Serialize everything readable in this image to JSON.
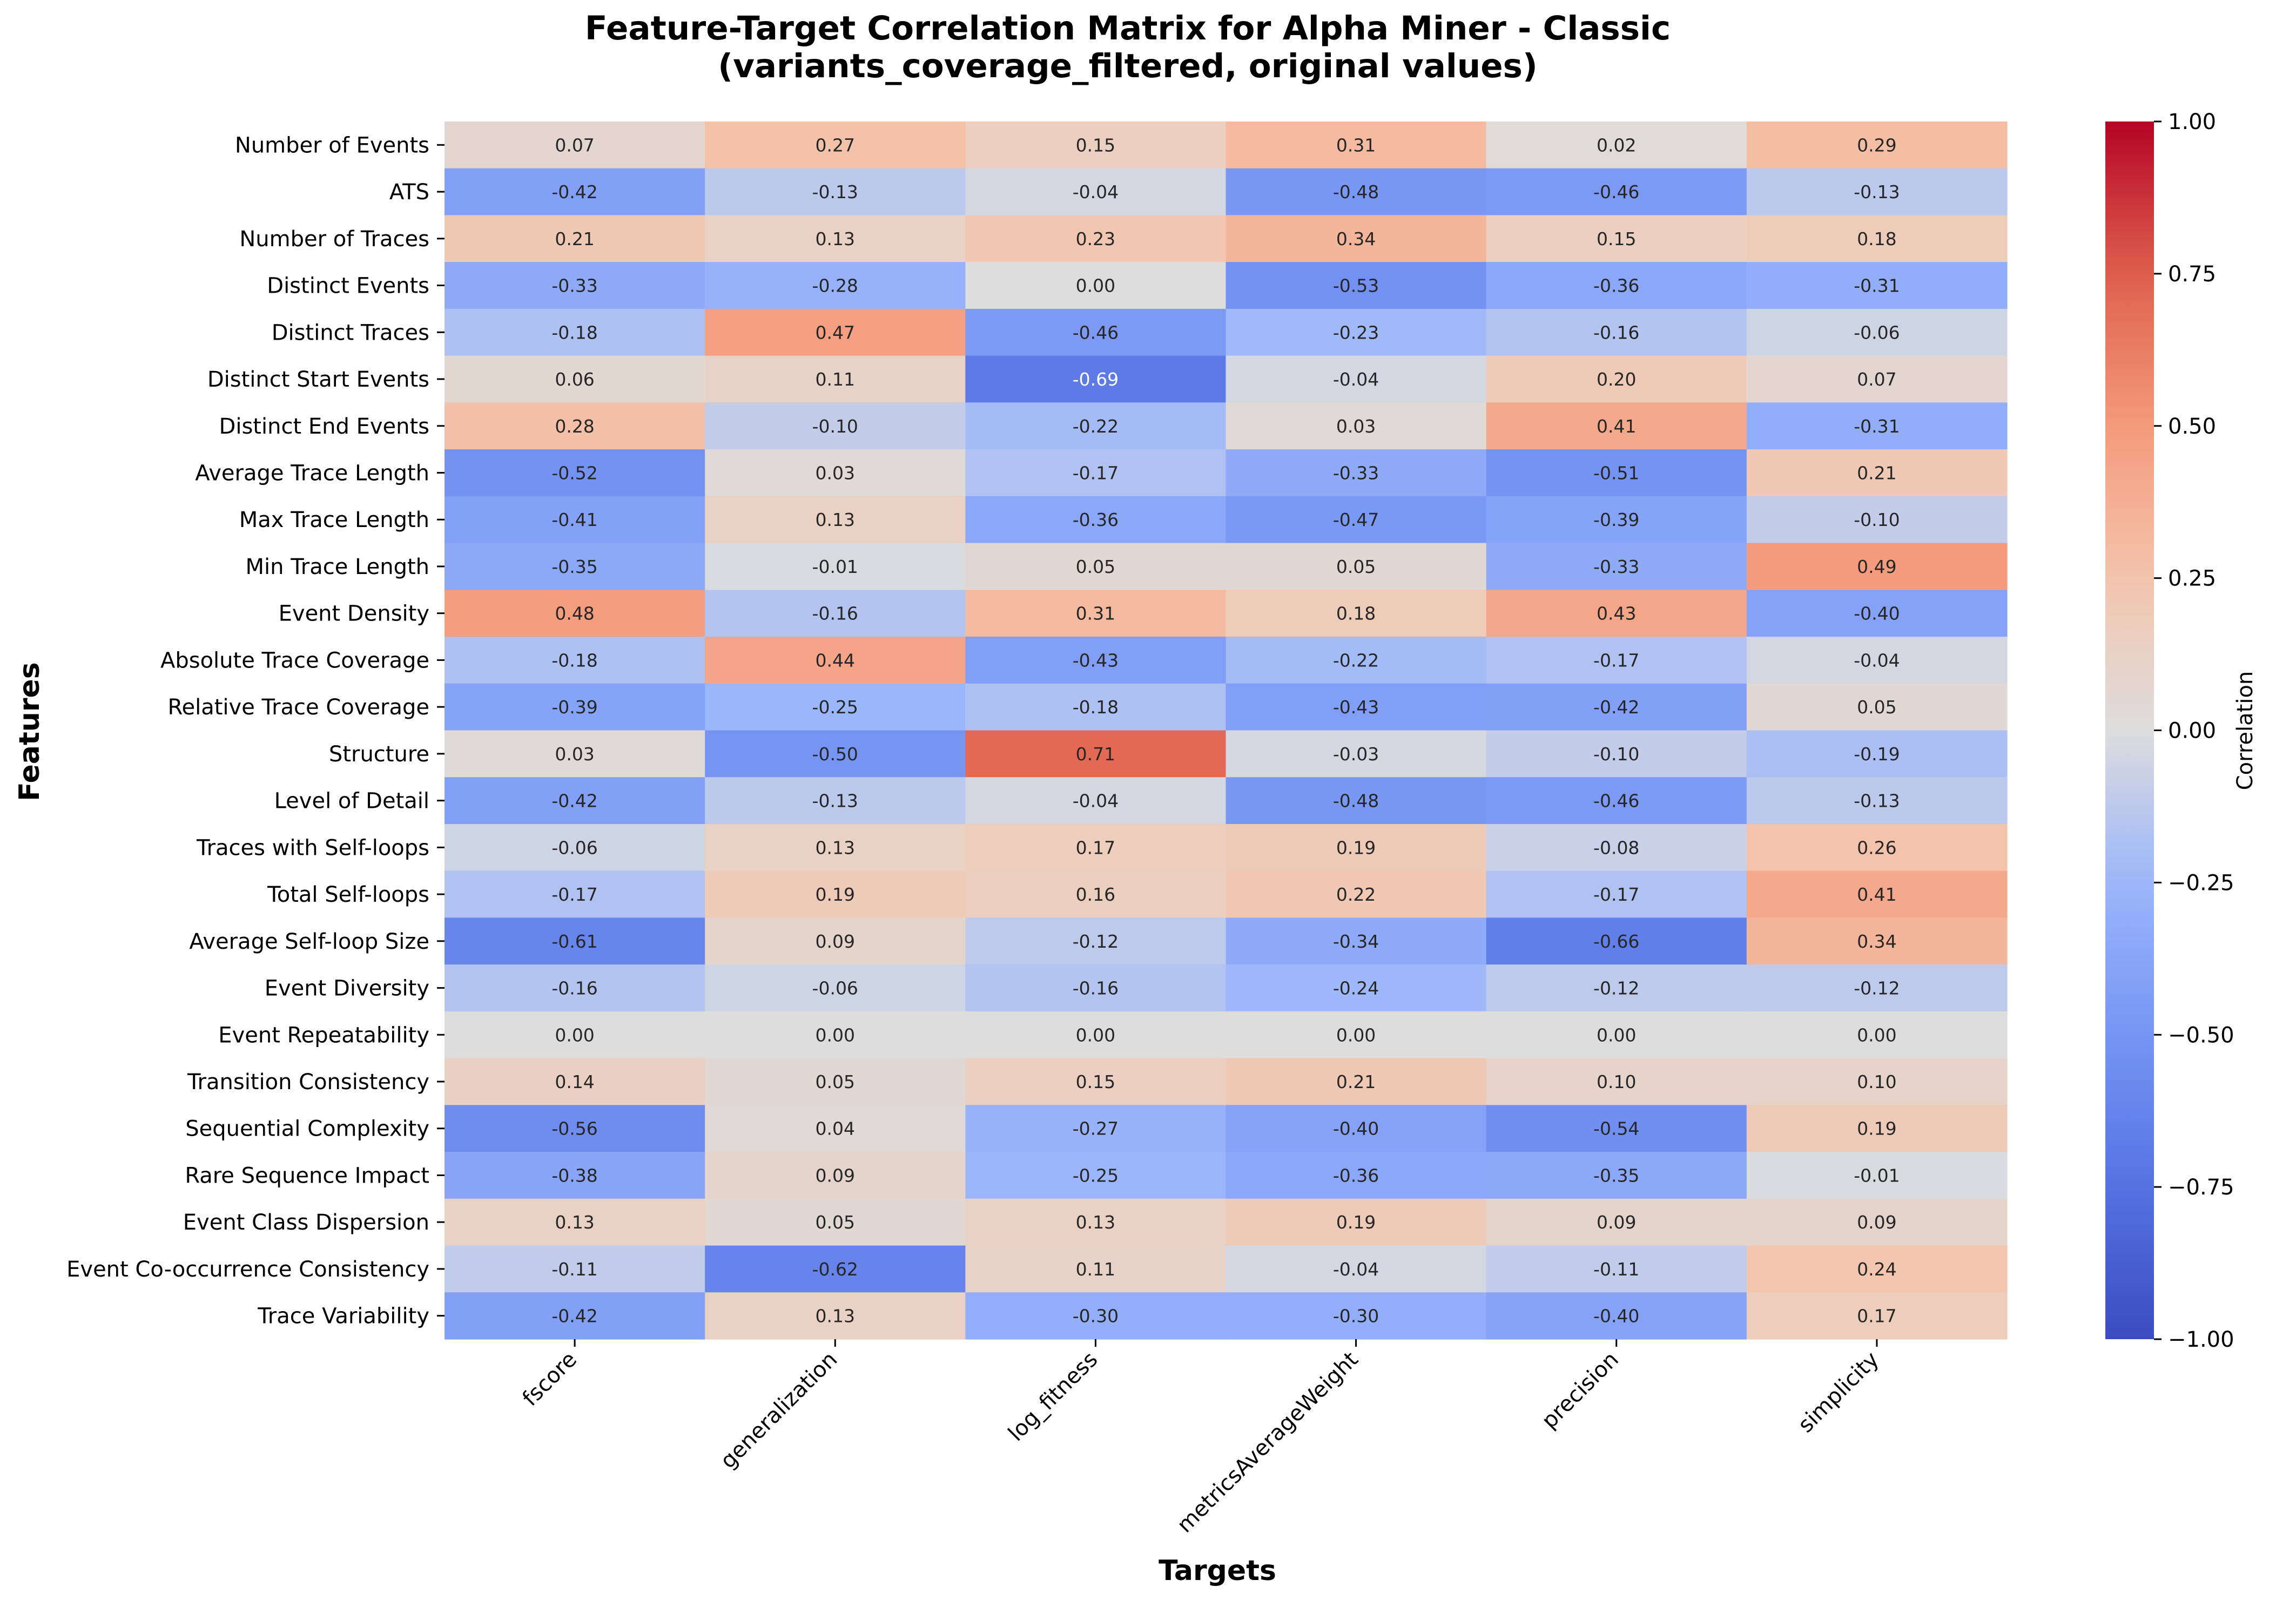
{
  "chart_data": {
    "type": "heatmap",
    "title": "Feature-Target Correlation Matrix for Alpha Miner - Classic",
    "subtitle": "(variants_coverage_filtered, original values)",
    "xlabel": "Targets",
    "ylabel": "Features",
    "colorbar_label": "Correlation",
    "colormap": "coolwarm",
    "vmin": -1.0,
    "vmax": 1.0,
    "colorbar_ticks": [
      "1.00",
      "0.75",
      "0.50",
      "0.25",
      "0.00",
      "−0.25",
      "−0.50",
      "−0.75",
      "−1.00"
    ],
    "columns": [
      "fscore",
      "generalization",
      "log_fitness",
      "metricsAverageWeight",
      "precision",
      "simplicity"
    ],
    "rows": [
      "Number of Events",
      "ATS",
      "Number of Traces",
      "Distinct Events",
      "Distinct Traces",
      "Distinct Start Events",
      "Distinct End Events",
      "Average Trace Length",
      "Max Trace Length",
      "Min Trace Length",
      "Event Density",
      "Absolute Trace Coverage",
      "Relative Trace Coverage",
      "Structure",
      "Level of Detail",
      "Traces with Self-loops",
      "Total Self-loops",
      "Average Self-loop Size",
      "Event Diversity",
      "Event Repeatability",
      "Transition Consistency",
      "Sequential Complexity",
      "Rare Sequence Impact",
      "Event Class Dispersion",
      "Event Co-occurrence Consistency",
      "Trace Variability"
    ],
    "values": [
      [
        0.07,
        0.27,
        0.15,
        0.31,
        0.02,
        0.29
      ],
      [
        -0.42,
        -0.13,
        -0.04,
        -0.48,
        -0.46,
        -0.13
      ],
      [
        0.21,
        0.13,
        0.23,
        0.34,
        0.15,
        0.18
      ],
      [
        -0.33,
        -0.28,
        0.0,
        -0.53,
        -0.36,
        -0.31
      ],
      [
        -0.18,
        0.47,
        -0.46,
        -0.23,
        -0.16,
        -0.06
      ],
      [
        0.06,
        0.11,
        -0.69,
        -0.04,
        0.2,
        0.07
      ],
      [
        0.28,
        -0.1,
        -0.22,
        0.03,
        0.41,
        -0.31
      ],
      [
        -0.52,
        0.03,
        -0.17,
        -0.33,
        -0.51,
        0.21
      ],
      [
        -0.41,
        0.13,
        -0.36,
        -0.47,
        -0.39,
        -0.1
      ],
      [
        -0.35,
        -0.01,
        0.05,
        0.05,
        -0.33,
        0.49
      ],
      [
        0.48,
        -0.16,
        0.31,
        0.18,
        0.43,
        -0.4
      ],
      [
        -0.18,
        0.44,
        -0.43,
        -0.22,
        -0.17,
        -0.04
      ],
      [
        -0.39,
        -0.25,
        -0.18,
        -0.43,
        -0.42,
        0.05
      ],
      [
        0.03,
        -0.5,
        0.71,
        -0.03,
        -0.1,
        -0.19
      ],
      [
        -0.42,
        -0.13,
        -0.04,
        -0.48,
        -0.46,
        -0.13
      ],
      [
        -0.06,
        0.13,
        0.17,
        0.19,
        -0.08,
        0.26
      ],
      [
        -0.17,
        0.19,
        0.16,
        0.22,
        -0.17,
        0.41
      ],
      [
        -0.61,
        0.09,
        -0.12,
        -0.34,
        -0.66,
        0.34
      ],
      [
        -0.16,
        -0.06,
        -0.16,
        -0.24,
        -0.12,
        -0.12
      ],
      [
        0.0,
        0.0,
        0.0,
        0.0,
        0.0,
        0.0
      ],
      [
        0.14,
        0.05,
        0.15,
        0.21,
        0.1,
        0.1
      ],
      [
        -0.56,
        0.04,
        -0.27,
        -0.4,
        -0.54,
        0.19
      ],
      [
        -0.38,
        0.09,
        -0.25,
        -0.36,
        -0.35,
        -0.01
      ],
      [
        0.13,
        0.05,
        0.13,
        0.19,
        0.09,
        0.09
      ],
      [
        -0.11,
        -0.62,
        0.11,
        -0.04,
        -0.11,
        0.24
      ],
      [
        -0.42,
        0.13,
        -0.3,
        -0.3,
        -0.4,
        0.17
      ]
    ]
  }
}
